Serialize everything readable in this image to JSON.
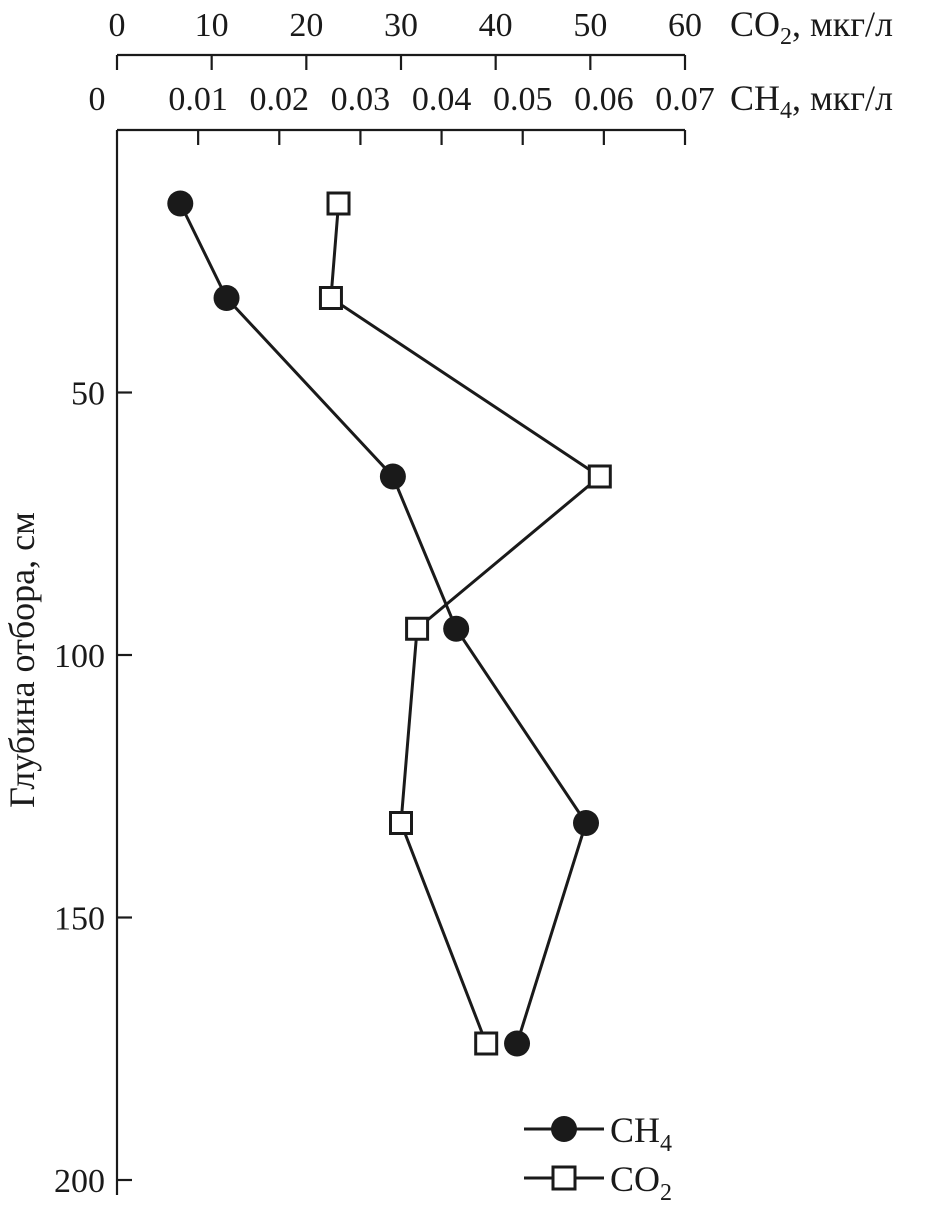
{
  "chart_data": {
    "type": "line",
    "orientation": "vertical-profile",
    "y_axis": {
      "label": "Глубина отбора, см",
      "range": [
        0,
        200
      ],
      "ticks": [
        50,
        100,
        150,
        200
      ],
      "inverted": true
    },
    "x_axis_co2": {
      "label_main": "CO",
      "label_sub": "2",
      "label_unit": ", мкг/л",
      "range": [
        0,
        60
      ],
      "ticks": [
        0,
        10,
        20,
        30,
        40,
        50,
        60
      ],
      "position": "top"
    },
    "x_axis_ch4": {
      "label_main": "CH",
      "label_sub": "4",
      "label_unit": ", мкг/л",
      "range": [
        0,
        0.07
      ],
      "ticks": [
        "0",
        "0.01",
        "0.02",
        "0.03",
        "0.04",
        "0.05",
        "0.06",
        "0.07"
      ],
      "position": "top"
    },
    "series": [
      {
        "name_main": "CH",
        "name_sub": "4",
        "axis": "ch4",
        "marker": "filled-circle",
        "points": [
          {
            "x": 0.0078,
            "depth": 14
          },
          {
            "x": 0.0135,
            "depth": 32
          },
          {
            "x": 0.034,
            "depth": 66
          },
          {
            "x": 0.0418,
            "depth": 95
          },
          {
            "x": 0.0578,
            "depth": 132
          },
          {
            "x": 0.0493,
            "depth": 174
          }
        ]
      },
      {
        "name_main": "CO",
        "name_sub": "2",
        "axis": "co2",
        "marker": "open-square",
        "points": [
          {
            "x": 23.4,
            "depth": 14
          },
          {
            "x": 22.6,
            "depth": 32
          },
          {
            "x": 51.0,
            "depth": 66
          },
          {
            "x": 31.7,
            "depth": 95
          },
          {
            "x": 30.0,
            "depth": 132
          },
          {
            "x": 39.0,
            "depth": 174
          }
        ]
      }
    ],
    "legend": {
      "placement": "bottom-right"
    },
    "grid": false
  }
}
